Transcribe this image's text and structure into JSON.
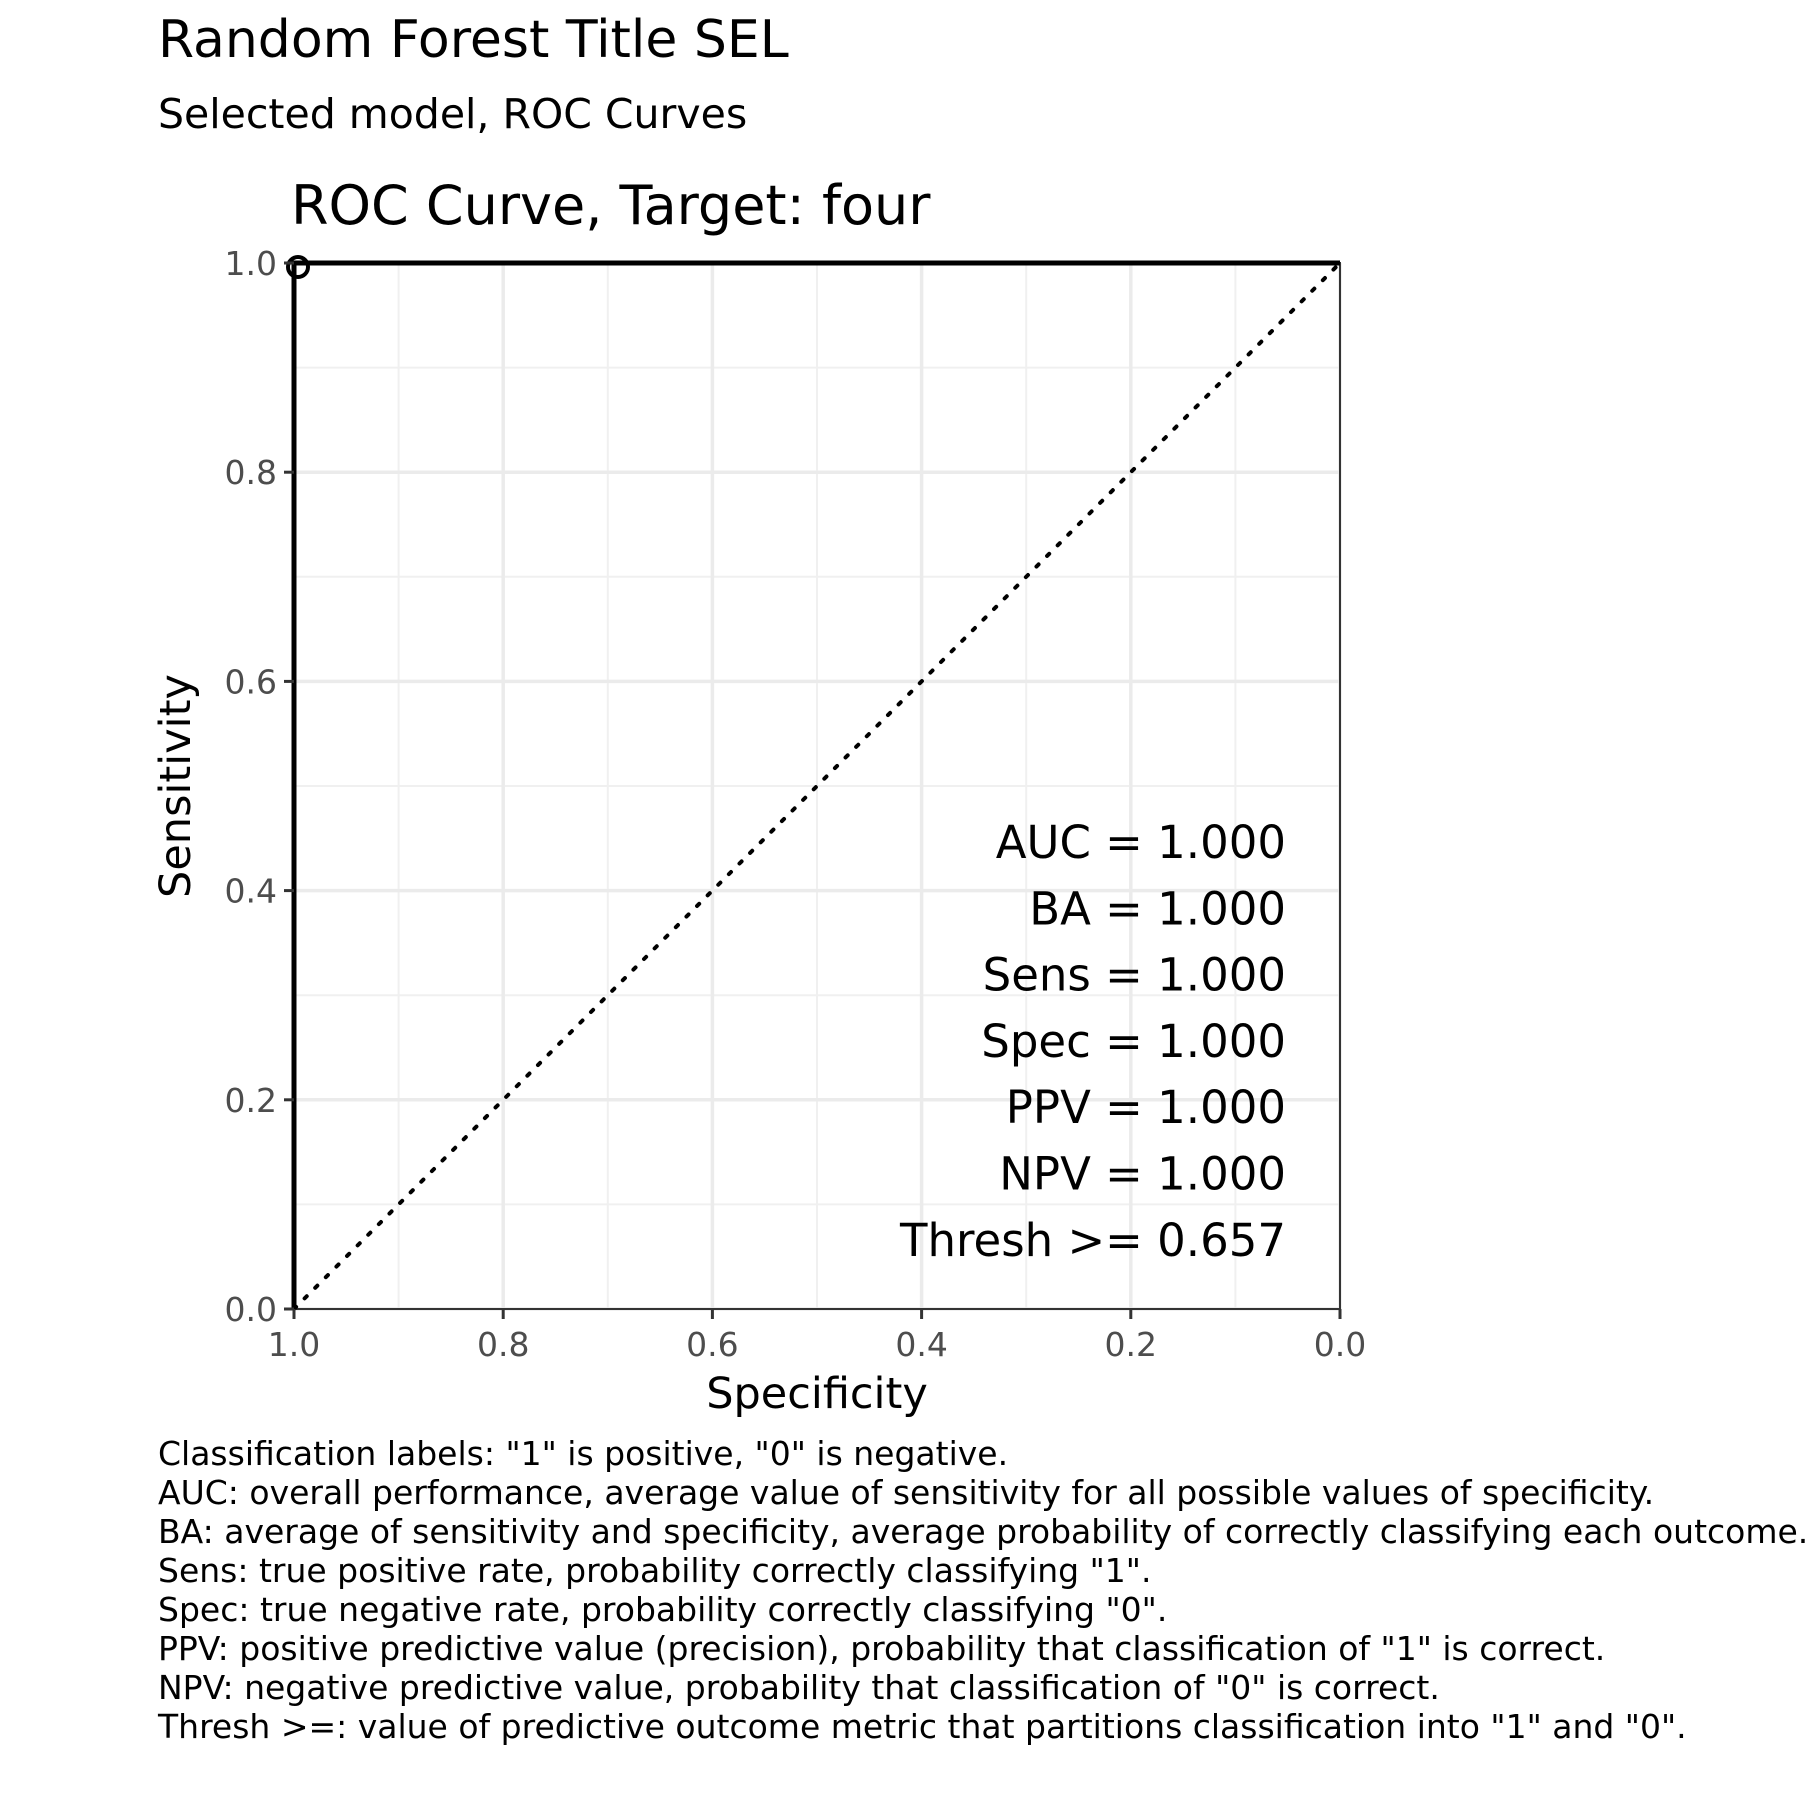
{
  "title": "Random Forest Title SEL",
  "subtitle": "Selected model, ROC Curves",
  "chart_data": {
    "type": "line",
    "title": "ROC Curve, Target:  four",
    "xlabel": "Specificity",
    "ylabel": "Sensitivity",
    "xlim": [
      1.0,
      0.0
    ],
    "ylim": [
      0.0,
      1.0
    ],
    "x_reversed": true,
    "x_ticks": [
      "1.0",
      "0.8",
      "0.6",
      "0.4",
      "0.2",
      "0.0"
    ],
    "y_ticks": [
      "0.0",
      "0.2",
      "0.4",
      "0.6",
      "0.8",
      "1.0"
    ],
    "grid": true,
    "series": [
      {
        "style": "solid",
        "color": "#000000",
        "x": [
          1.0,
          1.0,
          0.0
        ],
        "y": [
          0.0,
          1.0,
          1.0
        ]
      },
      {
        "style": "dotted",
        "color": "#000000",
        "x": [
          1.0,
          0.0
        ],
        "y": [
          0.0,
          1.0
        ]
      }
    ],
    "threshold_point": {
      "x": 1.0,
      "y": 1.0,
      "marker": "open-circle"
    },
    "annotations": [
      "AUC = 1.000",
      "BA = 1.000",
      "Sens = 1.000",
      "Spec = 1.000",
      "PPV = 1.000",
      "NPV = 1.000",
      "Thresh >= 0.657"
    ]
  },
  "caption": [
    "Classification labels:  \"1\" is positive, \"0\" is negative.",
    "AUC: overall performance, average value of sensitivity for all possible values of specificity.",
    "BA: average of sensitivity and specificity, average probability of correctly classifying each outcome.",
    "Sens: true positive rate, probability correctly classifying \"1\".",
    "Spec: true negative rate, probability correctly classifying \"0\".",
    "PPV: positive predictive value (precision), probability that classification of \"1\" is correct.",
    "NPV: negative predictive value, probability that classification of \"0\" is correct.",
    "Thresh >=: value of predictive outcome metric that partitions classification into \"1\" and \"0\"."
  ]
}
